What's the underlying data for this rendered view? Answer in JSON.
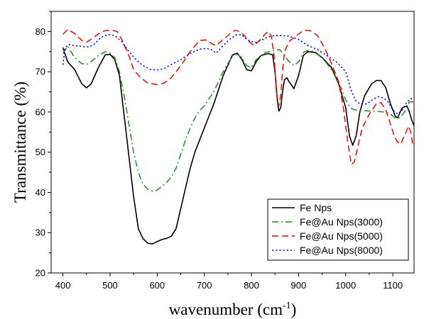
{
  "chart_data": {
    "type": "line",
    "title": "",
    "xlabel": "wavenumber (cm",
    "xlabel_sup": "-1",
    "xlabel_close": ")",
    "ylabel": "Transmittance (%)",
    "xlim": [
      375,
      1145
    ],
    "ylim": [
      20,
      85
    ],
    "xticks": [
      "400",
      "500",
      "600",
      "700",
      "800",
      "900",
      "1000",
      "1100"
    ],
    "yticks": [
      "20",
      "30",
      "40",
      "50",
      "60",
      "70",
      "80"
    ],
    "legend_position": "bottom-right",
    "grid": false,
    "series": [
      {
        "name": "Fe Nps",
        "color": "#000000",
        "dash": "solid",
        "points": [
          [
            400,
            76
          ],
          [
            410,
            72.5
          ],
          [
            425,
            70.5
          ],
          [
            440,
            67
          ],
          [
            450,
            66
          ],
          [
            460,
            67
          ],
          [
            475,
            71
          ],
          [
            490,
            74.2
          ],
          [
            500,
            74.3
          ],
          [
            510,
            73
          ],
          [
            520,
            69
          ],
          [
            530,
            59
          ],
          [
            540,
            49
          ],
          [
            550,
            39
          ],
          [
            560,
            31
          ],
          [
            570,
            28.5
          ],
          [
            580,
            27.4
          ],
          [
            590,
            27.2
          ],
          [
            600,
            27.8
          ],
          [
            610,
            28.3
          ],
          [
            620,
            28.6
          ],
          [
            630,
            29.1
          ],
          [
            640,
            31
          ],
          [
            650,
            36
          ],
          [
            660,
            41
          ],
          [
            670,
            46
          ],
          [
            680,
            50
          ],
          [
            690,
            53
          ],
          [
            700,
            56
          ],
          [
            720,
            62
          ],
          [
            740,
            69
          ],
          [
            760,
            74.2
          ],
          [
            770,
            74.6
          ],
          [
            780,
            73
          ],
          [
            790,
            70.5
          ],
          [
            800,
            70.2
          ],
          [
            810,
            72.5
          ],
          [
            820,
            74
          ],
          [
            835,
            74.5
          ],
          [
            845,
            74.2
          ],
          [
            850,
            70
          ],
          [
            855,
            63
          ],
          [
            858,
            60.2
          ],
          [
            862,
            61
          ],
          [
            866,
            65
          ],
          [
            870,
            68
          ],
          [
            875,
            68.5
          ],
          [
            880,
            67.5
          ],
          [
            890,
            65.8
          ],
          [
            900,
            69
          ],
          [
            910,
            74
          ],
          [
            920,
            75
          ],
          [
            935,
            74.8
          ],
          [
            950,
            73.5
          ],
          [
            970,
            71
          ],
          [
            985,
            67
          ],
          [
            1000,
            61
          ],
          [
            1008,
            54
          ],
          [
            1015,
            51.7
          ],
          [
            1022,
            54
          ],
          [
            1030,
            60
          ],
          [
            1040,
            64
          ],
          [
            1055,
            67
          ],
          [
            1065,
            67.8
          ],
          [
            1075,
            67.8
          ],
          [
            1085,
            66
          ],
          [
            1095,
            62
          ],
          [
            1105,
            59
          ],
          [
            1110,
            58.5
          ],
          [
            1115,
            59.8
          ],
          [
            1120,
            61
          ],
          [
            1130,
            61.5
          ],
          [
            1135,
            60
          ],
          [
            1140,
            58
          ],
          [
            1145,
            56.5
          ]
        ]
      },
      {
        "name": "Fe@Au Nps(3000)",
        "color": "#228b22",
        "dash": "dashdot",
        "points": [
          [
            400,
            74.5
          ],
          [
            410,
            76.3
          ],
          [
            425,
            73.5
          ],
          [
            440,
            72
          ],
          [
            450,
            71.8
          ],
          [
            460,
            72.5
          ],
          [
            475,
            74
          ],
          [
            490,
            75
          ],
          [
            500,
            74.6
          ],
          [
            510,
            73.5
          ],
          [
            520,
            70
          ],
          [
            530,
            64
          ],
          [
            540,
            57
          ],
          [
            550,
            50
          ],
          [
            560,
            45
          ],
          [
            570,
            42
          ],
          [
            580,
            40.8
          ],
          [
            590,
            40.3
          ],
          [
            600,
            40.6
          ],
          [
            610,
            41.5
          ],
          [
            620,
            42.5
          ],
          [
            630,
            43.8
          ],
          [
            640,
            46
          ],
          [
            650,
            49.5
          ],
          [
            660,
            53
          ],
          [
            670,
            56
          ],
          [
            680,
            58.5
          ],
          [
            690,
            60.3
          ],
          [
            700,
            61.5
          ],
          [
            720,
            65
          ],
          [
            740,
            70
          ],
          [
            760,
            74
          ],
          [
            770,
            74.3
          ],
          [
            780,
            73.5
          ],
          [
            790,
            71.5
          ],
          [
            800,
            71
          ],
          [
            810,
            73
          ],
          [
            830,
            74.8
          ],
          [
            850,
            75.3
          ],
          [
            860,
            75.5
          ],
          [
            870,
            74
          ],
          [
            880,
            72.5
          ],
          [
            890,
            71.5
          ],
          [
            900,
            72.5
          ],
          [
            910,
            74.8
          ],
          [
            920,
            75.3
          ],
          [
            935,
            75
          ],
          [
            950,
            73.5
          ],
          [
            970,
            70.5
          ],
          [
            990,
            66
          ],
          [
            1000,
            63
          ],
          [
            1010,
            61
          ],
          [
            1020,
            60.5
          ],
          [
            1040,
            60.3
          ],
          [
            1060,
            60.2
          ],
          [
            1080,
            60
          ],
          [
            1095,
            59.5
          ],
          [
            1105,
            58.5
          ],
          [
            1115,
            58.5
          ],
          [
            1125,
            60
          ],
          [
            1135,
            62.5
          ],
          [
            1145,
            62.5
          ]
        ]
      },
      {
        "name": "Fe@Au Nps(5000)",
        "color": "#ff0000",
        "dash": "dashed",
        "points": [
          [
            400,
            79.3
          ],
          [
            410,
            80.5
          ],
          [
            425,
            79.5
          ],
          [
            440,
            77.8
          ],
          [
            450,
            77.3
          ],
          [
            465,
            78.5
          ],
          [
            480,
            79.8
          ],
          [
            490,
            80.2
          ],
          [
            505,
            80.3
          ],
          [
            515,
            80
          ],
          [
            525,
            78
          ],
          [
            540,
            74
          ],
          [
            550,
            70.5
          ],
          [
            565,
            68.5
          ],
          [
            580,
            67.2
          ],
          [
            600,
            66.8
          ],
          [
            615,
            67.2
          ],
          [
            630,
            68.5
          ],
          [
            650,
            71.5
          ],
          [
            670,
            75
          ],
          [
            690,
            77.8
          ],
          [
            705,
            77.9
          ],
          [
            715,
            77
          ],
          [
            725,
            76.5
          ],
          [
            740,
            78
          ],
          [
            755,
            79.5
          ],
          [
            765,
            80.3
          ],
          [
            775,
            80
          ],
          [
            785,
            79
          ],
          [
            795,
            77.5
          ],
          [
            805,
            76.5
          ],
          [
            815,
            77.5
          ],
          [
            825,
            78.8
          ],
          [
            835,
            80
          ],
          [
            842,
            79
          ],
          [
            848,
            74
          ],
          [
            853,
            65
          ],
          [
            858,
            61.5
          ],
          [
            862,
            64
          ],
          [
            866,
            70
          ],
          [
            870,
            75
          ],
          [
            880,
            77.5
          ],
          [
            890,
            78.5
          ],
          [
            905,
            79.8
          ],
          [
            915,
            80.3
          ],
          [
            925,
            80.2
          ],
          [
            940,
            79
          ],
          [
            955,
            76
          ],
          [
            970,
            72
          ],
          [
            985,
            67.5
          ],
          [
            995,
            61
          ],
          [
            1005,
            52
          ],
          [
            1012,
            47
          ],
          [
            1018,
            47.5
          ],
          [
            1025,
            51
          ],
          [
            1035,
            56
          ],
          [
            1050,
            59.5
          ],
          [
            1065,
            62
          ],
          [
            1075,
            62.3
          ],
          [
            1085,
            60.5
          ],
          [
            1095,
            57
          ],
          [
            1103,
            54
          ],
          [
            1110,
            52.5
          ],
          [
            1117,
            52
          ],
          [
            1122,
            53.5
          ],
          [
            1128,
            55
          ],
          [
            1133,
            56.5
          ],
          [
            1138,
            55
          ],
          [
            1142,
            52
          ],
          [
            1145,
            51.5
          ]
        ]
      },
      {
        "name": "Fe@Au Nps(8000)",
        "color": "#0000ff",
        "dash": "dotted",
        "points": [
          [
            400,
            71.7
          ],
          [
            405,
            76
          ],
          [
            412,
            76.8
          ],
          [
            425,
            76.5
          ],
          [
            440,
            76.3
          ],
          [
            450,
            76.1
          ],
          [
            465,
            76.6
          ],
          [
            480,
            78.5
          ],
          [
            495,
            79.2
          ],
          [
            510,
            79
          ],
          [
            525,
            77.5
          ],
          [
            540,
            75
          ],
          [
            555,
            73
          ],
          [
            570,
            71.5
          ],
          [
            585,
            70.6
          ],
          [
            600,
            70.4
          ],
          [
            615,
            70.8
          ],
          [
            630,
            71.8
          ],
          [
            650,
            73
          ],
          [
            670,
            74.5
          ],
          [
            690,
            75.6
          ],
          [
            705,
            75.8
          ],
          [
            715,
            75.5
          ],
          [
            725,
            74.6
          ],
          [
            740,
            76.5
          ],
          [
            755,
            78.2
          ],
          [
            770,
            79.3
          ],
          [
            780,
            79.1
          ],
          [
            790,
            78
          ],
          [
            800,
            77.5
          ],
          [
            810,
            77.3
          ],
          [
            820,
            77.8
          ],
          [
            835,
            78.6
          ],
          [
            850,
            79
          ],
          [
            865,
            79
          ],
          [
            880,
            78.8
          ],
          [
            900,
            78
          ],
          [
            920,
            76.5
          ],
          [
            940,
            75.5
          ],
          [
            960,
            74
          ],
          [
            980,
            72.5
          ],
          [
            1000,
            70
          ],
          [
            1010,
            66
          ],
          [
            1020,
            63
          ],
          [
            1030,
            62
          ],
          [
            1045,
            62
          ],
          [
            1060,
            63.3
          ],
          [
            1070,
            63.8
          ],
          [
            1080,
            63.5
          ],
          [
            1090,
            62.5
          ],
          [
            1100,
            60.5
          ],
          [
            1110,
            59.5
          ],
          [
            1120,
            60.5
          ],
          [
            1130,
            62.5
          ],
          [
            1138,
            63.3
          ],
          [
            1145,
            63.2
          ]
        ]
      }
    ]
  }
}
